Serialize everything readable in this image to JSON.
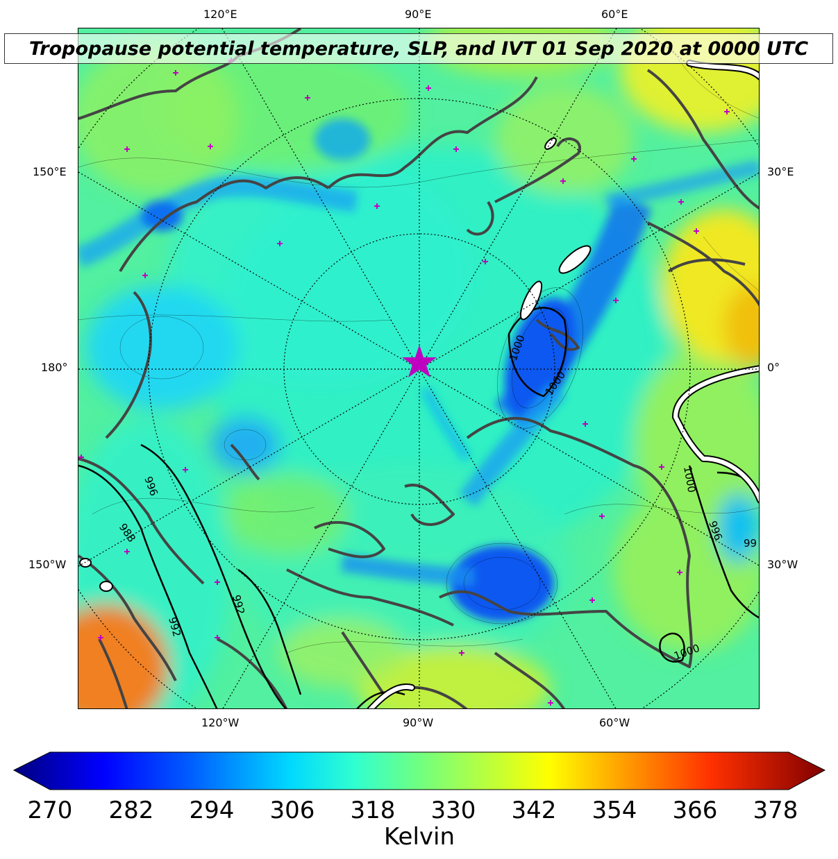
{
  "title": "Tropopause potential temperature, SLP, and IVT 01 Sep 2020 at 0000 UTC",
  "top_labels": [
    "120°E",
    "90°E",
    "60°E"
  ],
  "bottom_labels": [
    "120°W",
    "90°W",
    "60°W"
  ],
  "left_labels": [
    "150°E",
    "180°",
    "150°W"
  ],
  "right_labels": [
    "30°E",
    "0°",
    "30°W"
  ],
  "slp_labels": [
    "1000",
    "1000",
    "996",
    "988",
    "992",
    "992",
    "1000",
    "996",
    "99",
    "1000"
  ],
  "colorbar": {
    "ticks": [
      "270",
      "282",
      "294",
      "306",
      "318",
      "330",
      "342",
      "354",
      "366",
      "378"
    ],
    "label": "Kelvin",
    "min": 270,
    "max": 378
  },
  "colors": {
    "base": "#52f0a0",
    "cyan": "#20f0e0",
    "blue": "#1060f0",
    "yellow": "#f0f020",
    "orange": "#f06010",
    "land_outline": "#444444",
    "marker": "#c000c0"
  }
}
